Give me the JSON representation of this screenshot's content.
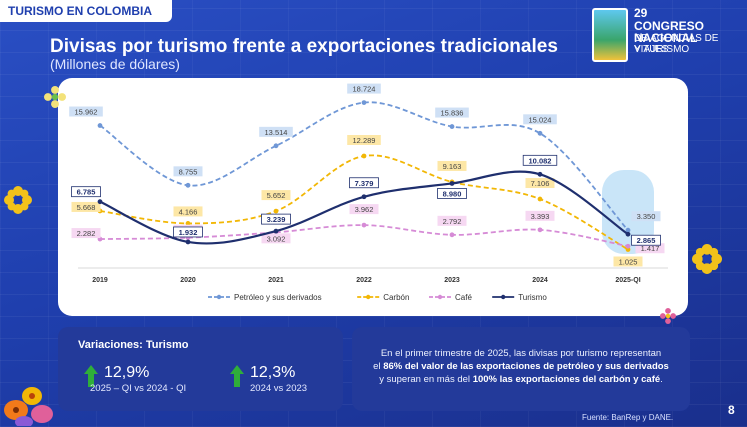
{
  "header": {
    "tag": "TURISMO EN COLOMBIA",
    "title": "Divisas por turismo frente a exportaciones tradicionales",
    "subtitle": "(Millones de dólares)"
  },
  "congreso": {
    "number": "29",
    "line1": "CONGRESO NACIONAL",
    "line2": "DE AGENCIAS DE VIAJES",
    "line3": "Y TURISMO"
  },
  "chart_data": {
    "type": "line",
    "title": "Divisas por turismo frente a exportaciones tradicionales",
    "ylabel": "Millones de dólares",
    "ylim": [
      0,
      20000
    ],
    "categories": [
      "2019",
      "2020",
      "2021",
      "2022",
      "2023",
      "2024",
      "2025-QI"
    ],
    "series": [
      {
        "name": "Petróleo y sus derivados",
        "color": "#6f97d6",
        "dash": "dash",
        "values": [
          15962,
          8755,
          13514,
          18724,
          15836,
          15024,
          3350
        ],
        "labels": [
          "15.962",
          "8.755",
          "13.514",
          "18.724",
          "15.836",
          "15.024",
          "3.350"
        ]
      },
      {
        "name": "Carbón",
        "color": "#f2b705",
        "dash": "dash",
        "values": [
          5668,
          4166,
          5652,
          12289,
          9163,
          7106,
          1025
        ],
        "labels": [
          "5.668",
          "4.166",
          "5.652",
          "12.289",
          "9.163",
          "7.106",
          "1.025"
        ]
      },
      {
        "name": "Café",
        "color": "#d68bd6",
        "dash": "dash",
        "values": [
          2282,
          2447,
          3092,
          3962,
          2792,
          3393,
          1417
        ],
        "labels": [
          "2.282",
          "2.447",
          "3.092",
          "3.962",
          "2.792",
          "3.393",
          "1.417"
        ]
      },
      {
        "name": "Turismo",
        "color": "#1f2f6e",
        "dash": "solid",
        "values": [
          6785,
          1932,
          3239,
          7379,
          8980,
          10082,
          2865
        ],
        "labels": [
          "6.785",
          "1.932",
          "3.239",
          "7.379",
          "8.980",
          "10.082",
          "2.865"
        ]
      }
    ],
    "legend_position": "bottom"
  },
  "variaciones": {
    "title": "Variaciones: Turismo",
    "items": [
      {
        "value": "12,9%",
        "caption": "2025 – QI vs 2024 - QI"
      },
      {
        "value": "12,3%",
        "caption": "2024 vs 2023"
      }
    ]
  },
  "info": {
    "line1": "En el primer trimestre de 2025, las divisas por turismo representan",
    "line2_pre": "el ",
    "line2_bold": "86% del valor de las exportaciones de petróleo y sus derivados",
    "line3_pre": "y superan en más del ",
    "line3_bold": "100% las exportaciones del carbón y café",
    "line3_post": "."
  },
  "source": "Fuente: BanRep y DANE.",
  "page_number": "8",
  "colors": {
    "background": "#1f3fae",
    "panel": "#233a9a",
    "accent_green": "#2fae3a"
  }
}
